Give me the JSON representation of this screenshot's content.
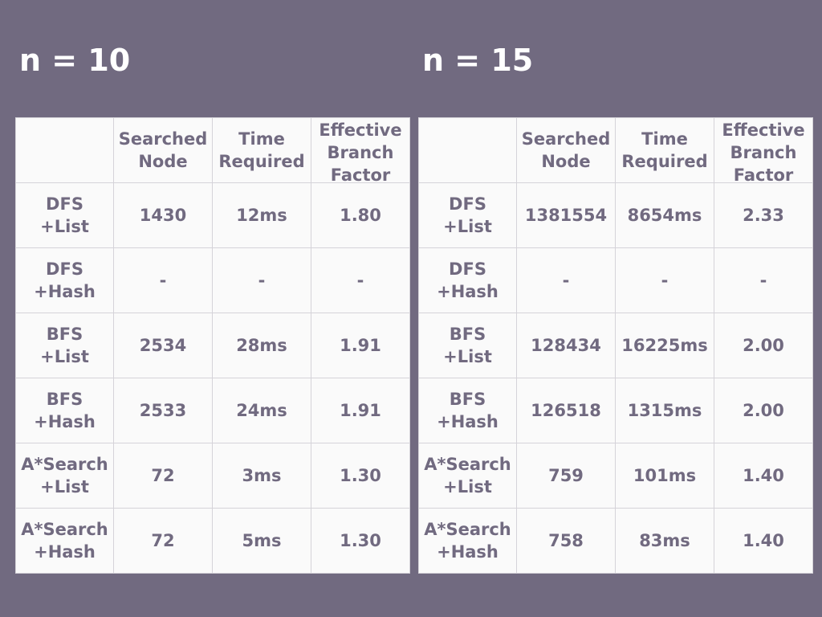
{
  "headings": {
    "left": "n = 10",
    "right": "n = 15"
  },
  "columns": [
    "",
    "Searched\nNode",
    "Time\nRequired",
    "Effective\nBranch\nFactor"
  ],
  "row_labels": [
    "DFS\n+List",
    "DFS\n+Hash",
    "BFS\n+List",
    "BFS\n+Hash",
    "A*Search\n+List",
    "A*Search\n+Hash"
  ],
  "tables": {
    "n10": {
      "rows": [
        [
          "1430",
          "12ms",
          "1.80"
        ],
        [
          "-",
          "-",
          "-"
        ],
        [
          "2534",
          "28ms",
          "1.91"
        ],
        [
          "2533",
          "24ms",
          "1.91"
        ],
        [
          "72",
          "3ms",
          "1.30"
        ],
        [
          "72",
          "5ms",
          "1.30"
        ]
      ]
    },
    "n15": {
      "rows": [
        [
          "1381554",
          "8654ms",
          "2.33"
        ],
        [
          "-",
          "-",
          "-"
        ],
        [
          "128434",
          "16225ms",
          "2.00"
        ],
        [
          "126518",
          "1315ms",
          "2.00"
        ],
        [
          "759",
          "101ms",
          "1.40"
        ],
        [
          "758",
          "83ms",
          "1.40"
        ]
      ]
    }
  },
  "colors": {
    "background": "#716a80",
    "table_background": "#fafafa",
    "table_text": "#716a80",
    "heading_text": "#ffffff",
    "grid_lines": "#d5d3d9"
  }
}
